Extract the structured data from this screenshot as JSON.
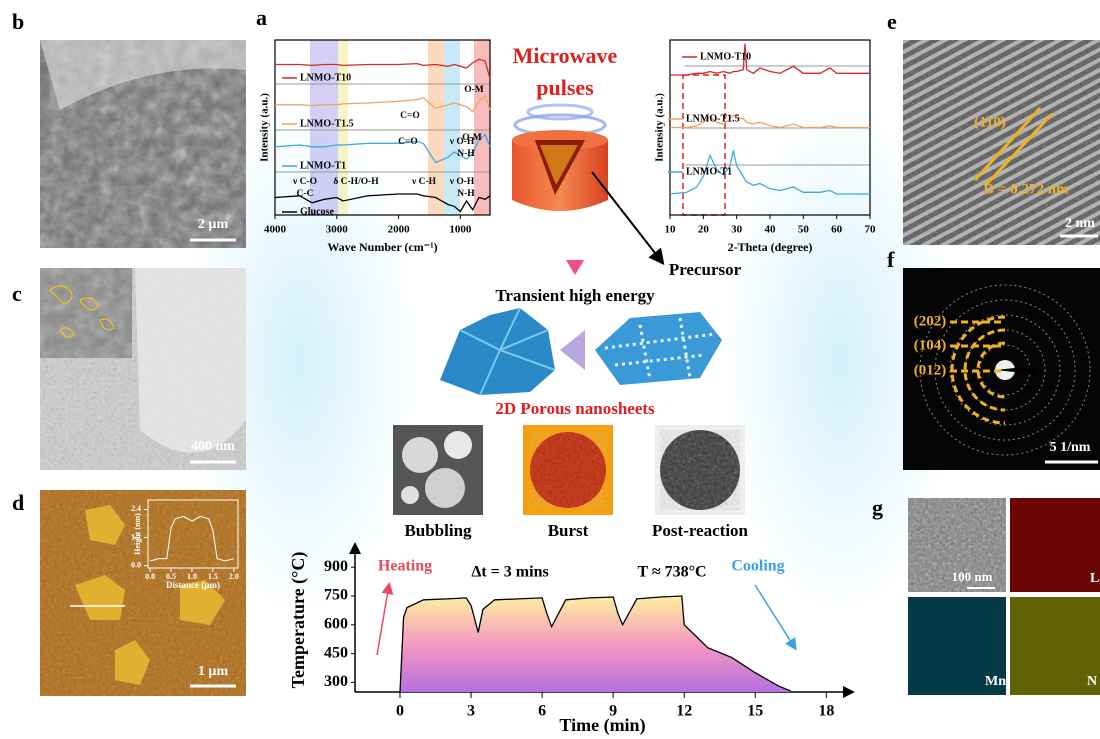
{
  "figure": {
    "panel_labels": [
      "a",
      "b",
      "c",
      "d",
      "e",
      "f",
      "g"
    ],
    "scale_bars": [
      "2 µm",
      "400 nm",
      "1 µm",
      "2 nm",
      "5 1/nm",
      "100 nm"
    ],
    "hrtem": {
      "plane": "(110)",
      "spacing": "D = 0.272 nm"
    },
    "saed_rings": [
      "(202)",
      "(104)",
      "(012)"
    ],
    "elements": [
      "La",
      "Mn",
      "N"
    ],
    "microwave": [
      "Microwave",
      "pulses"
    ],
    "precursor": "Precursor",
    "transient": "Transient high energy",
    "nanosheets": "2D Porous nanosheets",
    "steps": [
      "Bubbling",
      "Burst",
      "Post-reaction"
    ]
  },
  "chart_data": [
    {
      "type": "line",
      "xlabel": "Wave Number (cm⁻¹)",
      "ylabel": "Intensity (a.u.)",
      "xlim": [
        4000,
        520
      ],
      "xticks": [
        4000,
        3000,
        2000,
        1000
      ],
      "ylim": [
        0,
        10
      ],
      "annotations": [
        "O-M",
        "C=O",
        "O-M",
        "C=O",
        "ν O-H",
        "N-H",
        "ν C-O",
        "C-C",
        "δ C-H/O-H",
        "ν C-H",
        "ν O-H",
        "N-H"
      ],
      "x": [
        4000,
        3600,
        3400,
        3200,
        3000,
        2900,
        2500,
        2000,
        1700,
        1600,
        1400,
        1200,
        1100,
        1000,
        900,
        800,
        700,
        600,
        520
      ],
      "series": [
        {
          "name": "LNMO-T10",
          "color": "#d62728",
          "values": [
            8.6,
            8.6,
            8.55,
            8.6,
            8.6,
            8.55,
            8.6,
            8.6,
            8.65,
            8.55,
            8.6,
            8.5,
            8.6,
            8.5,
            8.4,
            8.7,
            8.9,
            8.8,
            7.8
          ]
        },
        {
          "name": "LNMO-T1.5",
          "color": "#f4a060",
          "values": [
            6.3,
            6.3,
            6.25,
            6.3,
            6.3,
            6.35,
            6.4,
            6.5,
            6.6,
            6.7,
            6.1,
            6.3,
            6.4,
            6.3,
            6.2,
            5.9,
            6.5,
            6.8,
            6.0
          ]
        },
        {
          "name": "LNMO-T1",
          "color": "#3fa9e0",
          "values": [
            3.9,
            4.0,
            3.9,
            3.9,
            4.0,
            4.0,
            4.1,
            4.1,
            4.2,
            4.1,
            3.0,
            3.3,
            3.6,
            3.4,
            3.2,
            3.5,
            4.3,
            4.6,
            3.9
          ]
        },
        {
          "name": "Glucose",
          "color": "#000000",
          "values": [
            1.0,
            1.1,
            0.7,
            0.9,
            1.0,
            0.8,
            1.1,
            1.2,
            1.2,
            1.1,
            1.0,
            0.6,
            0.5,
            0.2,
            0.8,
            0.3,
            1.0,
            0.9,
            1.1
          ]
        }
      ]
    },
    {
      "type": "line",
      "xlabel": "2-Theta (degree)",
      "ylabel": "Intensity (a.u.)",
      "xlim": [
        10,
        70
      ],
      "xticks": [
        10,
        20,
        30,
        40,
        50,
        60,
        70
      ],
      "ylim": [
        0,
        10
      ],
      "x": [
        10,
        15,
        18,
        20,
        22,
        24,
        26,
        28,
        29,
        30,
        32,
        32.5,
        33,
        35,
        37,
        40,
        43,
        47,
        50,
        55,
        58,
        60,
        65,
        70
      ],
      "series": [
        {
          "name": "LNMO-T10",
          "color": "#d62728",
          "values": [
            8,
            8,
            8.1,
            8.1,
            8.2,
            8.1,
            8.2,
            8.1,
            8.2,
            8.2,
            8.3,
            9.8,
            8.3,
            8.1,
            8.4,
            8.2,
            8.1,
            8.5,
            8.1,
            8.1,
            8.4,
            8.1,
            8.1,
            8.1
          ]
        },
        {
          "name": "LNMO-T1.5",
          "color": "#f4a060",
          "values": [
            5,
            5,
            5.1,
            5.3,
            5.6,
            5.3,
            5.2,
            5.5,
            5.7,
            5.6,
            5.5,
            5.4,
            5.3,
            5.2,
            5.3,
            5.1,
            5,
            5.2,
            5,
            5,
            5.1,
            5,
            5,
            5
          ]
        },
        {
          "name": "LNMO-T1",
          "color": "#3fa9e0",
          "values": [
            1.2,
            1.3,
            1.6,
            2.2,
            3.4,
            2.6,
            2.3,
            2.8,
            3.7,
            2.8,
            2.2,
            2,
            1.9,
            1.7,
            1.8,
            1.5,
            1.4,
            1.6,
            1.3,
            1.3,
            1.4,
            1.2,
            1.2,
            1.2
          ]
        }
      ]
    },
    {
      "type": "area",
      "xlabel": "Time (min)",
      "ylabel": "Temperature (°C)",
      "xlim": [
        -1.9,
        19
      ],
      "xticks": [
        0,
        3,
        6,
        9,
        12,
        15,
        18
      ],
      "ylim": [
        250,
        1000
      ],
      "yticks": [
        300,
        450,
        600,
        750,
        900
      ],
      "annotations": [
        "Heating",
        "Δt = 3 mins",
        "T ≈ 738°C",
        "Cooling"
      ],
      "color": "#000000",
      "x": [
        0,
        0.15,
        0.3,
        1,
        2,
        2.8,
        3.0,
        3.3,
        3.5,
        4,
        5,
        6,
        6.2,
        6.4,
        7,
        8,
        9,
        9.2,
        9.4,
        10,
        11,
        11.9,
        12,
        13,
        14,
        15,
        16,
        16.5
      ],
      "values": [
        250,
        640,
        690,
        730,
        735,
        740,
        700,
        560,
        680,
        730,
        735,
        740,
        660,
        590,
        730,
        740,
        745,
        660,
        600,
        735,
        745,
        750,
        600,
        480,
        430,
        350,
        280,
        255
      ]
    },
    {
      "type": "line",
      "xlabel": "Distance (µm)",
      "ylabel": "Height (nm)",
      "xlim": [
        -0.05,
        2.1
      ],
      "xticks": [
        {
          "value": 0,
          "label": "0.0"
        },
        0.5,
        {
          "value": 1,
          "label": "1.0"
        },
        1.5,
        {
          "value": 2,
          "label": "2.0"
        }
      ],
      "ylim": [
        -0.1,
        2.8
      ],
      "yticks": [
        {
          "value": 0,
          "label": "0.0"
        },
        1.2,
        2.4
      ],
      "color": "#ffffff",
      "x": [
        0,
        0.2,
        0.4,
        0.5,
        0.6,
        0.8,
        1.0,
        1.2,
        1.4,
        1.5,
        1.6,
        1.8,
        2.0
      ],
      "values": [
        0.2,
        0.3,
        0.3,
        1.6,
        2.0,
        2.1,
        1.9,
        2.1,
        2.0,
        1.5,
        0.3,
        0.2,
        0.3
      ]
    }
  ]
}
